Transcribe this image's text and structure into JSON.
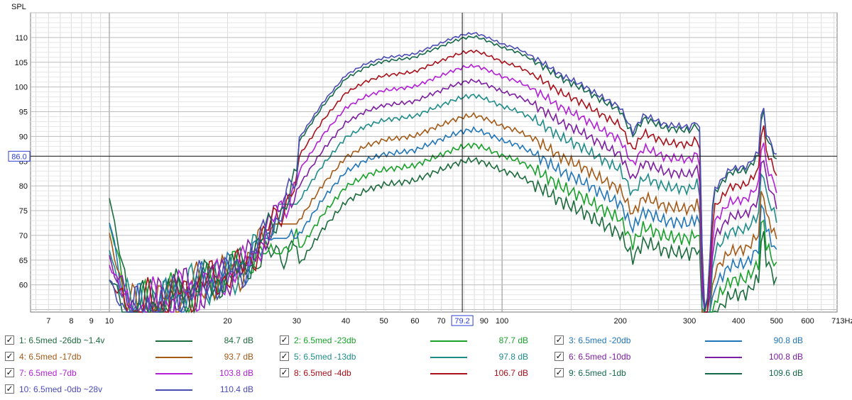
{
  "chart_data": {
    "type": "line",
    "ylabel": "SPL",
    "xunit": "Hz",
    "xscale": "log",
    "xlim": [
      6.3,
      713
    ],
    "ylim": [
      54.5,
      115
    ],
    "grid": true,
    "yticks": [
      "60",
      "65",
      "70",
      "75",
      "80",
      "85",
      "90",
      "95",
      "100",
      "105",
      "110"
    ],
    "xticks": [
      "7",
      "8",
      "9",
      "10",
      "20",
      "30",
      "40",
      "50",
      "60",
      "70",
      "90",
      "100",
      "200",
      "300",
      "400",
      "500",
      "600",
      "713Hz"
    ],
    "cursor": {
      "x_label": "79.2",
      "y_label": "86.0"
    },
    "series": [
      {
        "name": "1: 6.5med -26db ~1.4v",
        "value_label": "84.7 dB",
        "color": "#1c6b3c",
        "peak": 85.3
      },
      {
        "name": "2: 6.5med -23db",
        "value_label": "87.7 dB",
        "color": "#19a12b",
        "peak": 88.3
      },
      {
        "name": "3: 6.5med -20db",
        "value_label": "90.8 dB",
        "color": "#2176b8",
        "peak": 91.4
      },
      {
        "name": "4: 6.5med -17db",
        "value_label": "93.7 dB",
        "color": "#a35a16",
        "peak": 94.3
      },
      {
        "name": "5: 6.5med -13db",
        "value_label": "97.8 dB",
        "color": "#1f8c8a",
        "peak": 98.3
      },
      {
        "name": "6: 6.5med -10db",
        "value_label": "100.8 dB",
        "color": "#7c1fa0",
        "peak": 101.3
      },
      {
        "name": "7: 6.5med -7db",
        "value_label": "103.8 dB",
        "color": "#b21fd6",
        "peak": 104.3
      },
      {
        "name": "8: 6.5med -4db",
        "value_label": "106.7 dB",
        "color": "#a8101a",
        "peak": 107.3
      },
      {
        "name": "9: 6.5med -1db",
        "value_label": "109.6 dB",
        "color": "#15684a",
        "peak": 110.2
      },
      {
        "name": "10: 6.5med -0db ~28v",
        "value_label": "110.4 dB",
        "color": "#4b4bb4",
        "peak": 110.9
      }
    ]
  }
}
